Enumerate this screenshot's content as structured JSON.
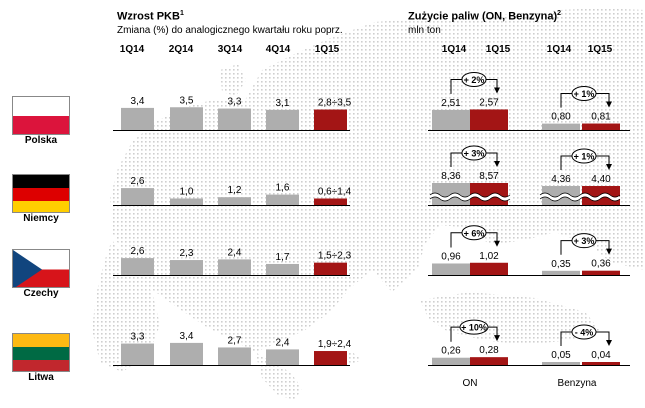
{
  "gdp": {
    "title": "Wzrost PKB",
    "title_note": "1",
    "subtitle": "Zmiana (%) do analogicznego kwartału roku poprz.",
    "headers": [
      "1Q14",
      "2Q14",
      "3Q14",
      "4Q14",
      "1Q15"
    ]
  },
  "fuel": {
    "title": "Zużycie paliw (ON, Benzyna)",
    "title_note": "2",
    "subtitle": "mln ton",
    "headers": [
      "1Q14",
      "1Q15",
      "1Q14",
      "1Q15"
    ],
    "bottom_labels": [
      "ON",
      "Benzyna"
    ]
  },
  "countries": [
    {
      "name": "Polska",
      "flag": "pl"
    },
    {
      "name": "Niemcy",
      "flag": "de"
    },
    {
      "name": "Czechy",
      "flag": "cz"
    },
    {
      "name": "Litwa",
      "flag": "lt"
    }
  ],
  "colors": {
    "gray": "#aeaeae",
    "red": "#a31515"
  },
  "chart_data": [
    {
      "type": "bar",
      "categories": [
        "1Q14",
        "2Q14",
        "3Q14",
        "4Q14",
        "1Q15"
      ],
      "series": [
        {
          "name": "Polska",
          "values": [
            3.4,
            3.5,
            3.3,
            3.1,
            3.15
          ],
          "labels": [
            "3,4",
            "3,5",
            "3,3",
            "3,1",
            "2,8÷3,5"
          ]
        },
        {
          "name": "Niemcy",
          "values": [
            2.6,
            1.0,
            1.2,
            1.6,
            1.0
          ],
          "labels": [
            "2,6",
            "1,0",
            "1,2",
            "1,6",
            "0,6÷1,4"
          ]
        },
        {
          "name": "Czechy",
          "values": [
            2.6,
            2.3,
            2.4,
            1.7,
            1.9
          ],
          "labels": [
            "2,6",
            "2,3",
            "2,4",
            "1,7",
            "1,5÷2,3"
          ]
        },
        {
          "name": "Litwa",
          "values": [
            3.3,
            3.4,
            2.7,
            2.4,
            2.15
          ],
          "labels": [
            "3,3",
            "3,4",
            "2,7",
            "2,4",
            "1,9÷2,4"
          ]
        }
      ],
      "title": "Wzrost PKB",
      "ylabel": "Zmiana (%) do analogicznego kwartału roku poprz."
    },
    {
      "type": "bar",
      "categories": [
        "1Q14",
        "1Q15"
      ],
      "groups": [
        "ON",
        "Benzyna"
      ],
      "title": "Zużycie paliw (ON, Benzyna)",
      "ylabel": "mln ton",
      "rows": [
        {
          "country": "Polska",
          "on": [
            2.51,
            2.57
          ],
          "on_labels": [
            "2,51",
            "2,57"
          ],
          "on_change": "+ 2%",
          "benzyna": [
            0.8,
            0.81
          ],
          "benzyna_labels": [
            "0,80",
            "0,81"
          ],
          "benzyna_change": "+ 1%",
          "broken": false
        },
        {
          "country": "Niemcy",
          "on": [
            8.36,
            8.57
          ],
          "on_labels": [
            "8,36",
            "8,57"
          ],
          "on_change": "+ 3%",
          "benzyna": [
            4.36,
            4.4
          ],
          "benzyna_labels": [
            "4,36",
            "4,40"
          ],
          "benzyna_change": "+ 1%",
          "broken": true
        },
        {
          "country": "Czechy",
          "on": [
            0.96,
            1.02
          ],
          "on_labels": [
            "0,96",
            "1,02"
          ],
          "on_change": "+ 6%",
          "benzyna": [
            0.35,
            0.36
          ],
          "benzyna_labels": [
            "0,35",
            "0,36"
          ],
          "benzyna_change": "+ 3%",
          "broken": false
        },
        {
          "country": "Litwa",
          "on": [
            0.26,
            0.28
          ],
          "on_labels": [
            "0,26",
            "0,28"
          ],
          "on_change": "+ 10%",
          "benzyna": [
            0.05,
            0.04
          ],
          "benzyna_labels": [
            "0,05",
            "0,04"
          ],
          "benzyna_change": "- 4%",
          "broken": false
        }
      ]
    }
  ]
}
